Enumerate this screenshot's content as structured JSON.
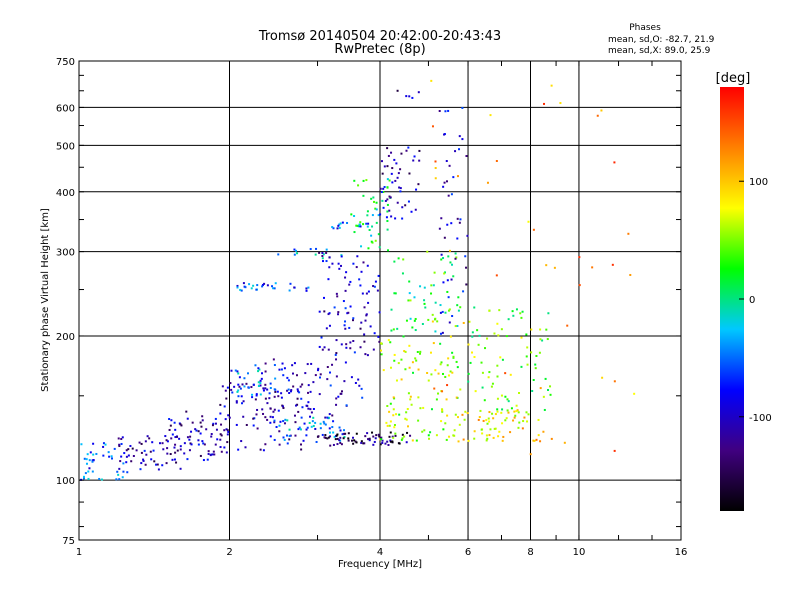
{
  "chart_data": {
    "type": "scatter",
    "title": "Tromsø 20140504 20:42:00-20:43:43",
    "subtitle": "RwPretec (8p)",
    "xlabel": "Frequency [MHz]",
    "ylabel": "Stationary phase Virtual Height [km]",
    "x_scale": "log",
    "y_scale": "log",
    "xlim": [
      1,
      16
    ],
    "ylim": [
      75,
      750
    ],
    "x_ticks": [
      1,
      2,
      4,
      6,
      8,
      10,
      16
    ],
    "y_ticks": [
      75,
      100,
      200,
      300,
      400,
      500,
      600,
      750
    ],
    "x_grid_lines": [
      2,
      4,
      6,
      8,
      10
    ],
    "y_grid_lines": [
      100,
      200,
      300,
      400,
      500,
      600
    ],
    "grid": true,
    "stats": {
      "heading": "Phases",
      "line_o": "mean, sd,O: -82.7, 21.9",
      "line_x": "mean, sd,X:  89.0, 25.9"
    },
    "colorbar": {
      "label": "[deg]",
      "range": [
        -180,
        180
      ],
      "ticks": [
        100,
        0,
        -100
      ],
      "colormap": "rainbow",
      "stops": [
        "#000000",
        "#400080",
        "#0000ff",
        "#00c8ff",
        "#00ff00",
        "#ffff00",
        "#ff8000",
        "#ff0000"
      ]
    },
    "clusters": [
      {
        "x0": 1.0,
        "x1": 1.25,
        "y0": 100,
        "y1": 120,
        "phase": -60,
        "n": 45
      },
      {
        "x0": 1.2,
        "x1": 1.6,
        "y0": 105,
        "y1": 125,
        "phase": -110,
        "n": 60
      },
      {
        "x0": 1.5,
        "x1": 2.0,
        "y0": 110,
        "y1": 140,
        "phase": -110,
        "n": 70
      },
      {
        "x0": 1.9,
        "x1": 2.8,
        "y0": 115,
        "y1": 160,
        "phase": -105,
        "n": 90
      },
      {
        "x0": 2.0,
        "x1": 2.6,
        "y0": 150,
        "y1": 175,
        "phase": -50,
        "n": 35
      },
      {
        "x0": 2.4,
        "x1": 3.4,
        "y0": 120,
        "y1": 135,
        "phase": -50,
        "n": 50
      },
      {
        "x0": 3.0,
        "x1": 4.6,
        "y0": 118,
        "y1": 126,
        "phase": -140,
        "n": 70
      },
      {
        "x0": 2.3,
        "x1": 3.7,
        "y0": 135,
        "y1": 180,
        "phase": -95,
        "n": 80
      },
      {
        "x0": 2.0,
        "x1": 2.9,
        "y0": 248,
        "y1": 258,
        "phase": -60,
        "n": 28
      },
      {
        "x0": 2.5,
        "x1": 3.4,
        "y0": 290,
        "y1": 305,
        "phase": -40,
        "n": 14
      },
      {
        "x0": 3.2,
        "x1": 3.8,
        "y0": 335,
        "y1": 345,
        "phase": -60,
        "n": 16
      },
      {
        "x0": 3.0,
        "x1": 4.0,
        "y0": 180,
        "y1": 300,
        "phase": -100,
        "n": 90
      },
      {
        "x0": 3.5,
        "x1": 4.2,
        "y0": 300,
        "y1": 430,
        "phase": 10,
        "n": 45
      },
      {
        "x0": 4.0,
        "x1": 4.8,
        "y0": 350,
        "y1": 500,
        "phase": -110,
        "n": 50
      },
      {
        "x0": 4.3,
        "x1": 4.8,
        "y0": 620,
        "y1": 650,
        "phase": -110,
        "n": 5
      },
      {
        "x0": 4.0,
        "x1": 5.8,
        "y0": 120,
        "y1": 200,
        "phase": 60,
        "n": 110
      },
      {
        "x0": 4.2,
        "x1": 5.8,
        "y0": 200,
        "y1": 300,
        "phase": 20,
        "n": 60
      },
      {
        "x0": 5.2,
        "x1": 6.0,
        "y0": 200,
        "y1": 600,
        "phase": -100,
        "n": 45
      },
      {
        "x0": 5.6,
        "x1": 8.5,
        "y0": 120,
        "y1": 140,
        "phase": 90,
        "n": 70
      },
      {
        "x0": 6.0,
        "x1": 8.8,
        "y0": 140,
        "y1": 230,
        "phase": 40,
        "n": 80
      },
      {
        "x0": 5.0,
        "x1": 13.0,
        "y0": 90,
        "y1": 700,
        "phase": 120,
        "n": 45
      }
    ]
  }
}
